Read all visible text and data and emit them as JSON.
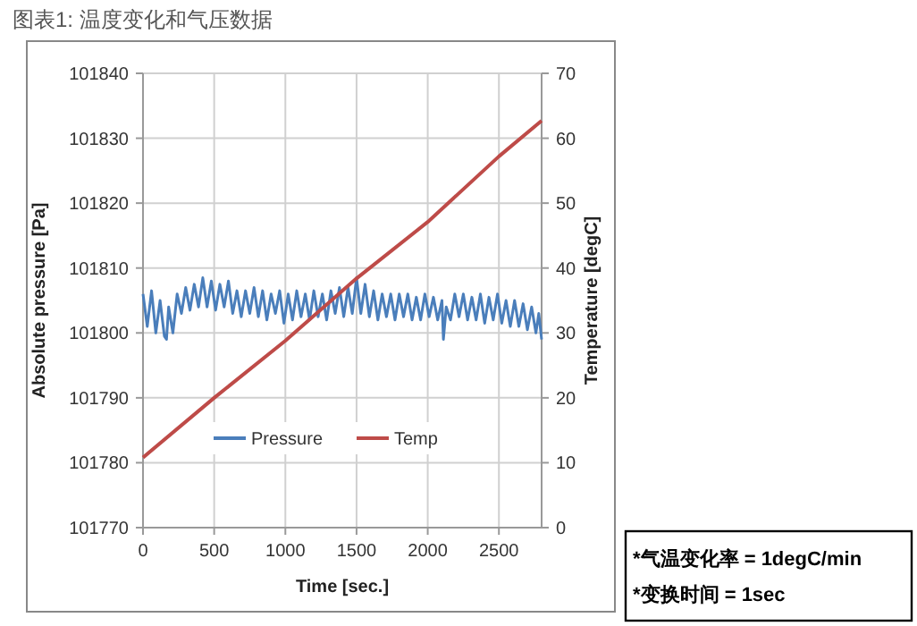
{
  "chart_data": {
    "type": "line",
    "title": "图表1: 温度变化和气压数据",
    "xlabel": "Time [sec.]",
    "ylabel": "Absolute pressure [Pa]",
    "y2label": "Temperature [degC]",
    "xlim": [
      0,
      2800
    ],
    "xticks": [
      0,
      500,
      1000,
      1500,
      2000,
      2500
    ],
    "ylim": [
      101770,
      101840
    ],
    "yticks": [
      101770,
      101780,
      101790,
      101800,
      101810,
      101820,
      101830,
      101840
    ],
    "y2lim": [
      0,
      70
    ],
    "y2ticks": [
      0,
      10,
      20,
      30,
      40,
      50,
      60,
      70
    ],
    "grid": true,
    "legend": "bottom",
    "series": [
      {
        "name": "Pressure",
        "color": "#4a7ebb",
        "x": [
          0,
          30,
          60,
          90,
          120,
          150,
          165,
          180,
          210,
          240,
          270,
          300,
          330,
          360,
          390,
          420,
          450,
          480,
          510,
          540,
          570,
          600,
          630,
          660,
          690,
          720,
          750,
          780,
          810,
          840,
          870,
          900,
          930,
          960,
          990,
          1020,
          1050,
          1080,
          1110,
          1140,
          1170,
          1200,
          1230,
          1260,
          1290,
          1320,
          1350,
          1380,
          1410,
          1440,
          1470,
          1500,
          1530,
          1560,
          1590,
          1620,
          1650,
          1680,
          1710,
          1740,
          1770,
          1800,
          1830,
          1860,
          1890,
          1920,
          1950,
          1980,
          2010,
          2040,
          2070,
          2100,
          2110,
          2130,
          2160,
          2190,
          2220,
          2250,
          2280,
          2310,
          2340,
          2370,
          2400,
          2430,
          2460,
          2490,
          2520,
          2550,
          2580,
          2610,
          2640,
          2670,
          2700,
          2730,
          2760,
          2780,
          2800
        ],
        "values": [
          101806,
          101801,
          101806.5,
          101800,
          101805,
          101799.5,
          101799,
          101804,
          101800,
          101806,
          101803,
          101807,
          101803.5,
          101807.5,
          101804,
          101808.5,
          101804,
          101808,
          101803.5,
          101807.5,
          101804,
          101808,
          101803,
          101806.5,
          101802.5,
          101806.5,
          101803,
          101807,
          101802.5,
          101806.5,
          101802,
          101806,
          101803,
          101806.5,
          101801.5,
          101806,
          101802,
          101806.5,
          101802.5,
          101806,
          101802,
          101806.5,
          101802.5,
          101806,
          101802,
          101806.5,
          101803,
          101807,
          101802.5,
          101807,
          101803,
          101808.5,
          101803,
          101807.5,
          101802.5,
          101806.5,
          101802,
          101806,
          101802.5,
          101806,
          101802,
          101806,
          101802.5,
          101806,
          101802,
          101805.5,
          101802,
          101806,
          101802.5,
          101805.5,
          101802,
          101805,
          101799,
          101804,
          101802,
          101806,
          101802.5,
          101806,
          101802,
          101805.5,
          101802,
          101806,
          101801.5,
          101805.5,
          101802,
          101806,
          101801.5,
          101805,
          101801,
          101805,
          101801,
          101804.5,
          101800.5,
          101804,
          101800,
          101803,
          101799
        ]
      },
      {
        "name": "Temp",
        "color": "#be4b48",
        "axis": "y2",
        "x": [
          0,
          500,
          1000,
          1500,
          2000,
          2500,
          2800
        ],
        "values": [
          10.8,
          20,
          28.8,
          38.4,
          47.1,
          57.2,
          62.7
        ]
      }
    ],
    "annotations": [
      "*气温变化率 = 1degC/min",
      "*变换时间 = 1sec"
    ]
  }
}
